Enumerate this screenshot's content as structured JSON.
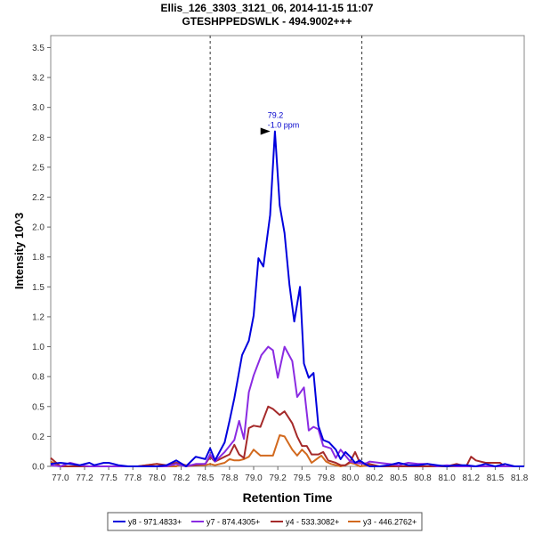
{
  "chart_data": {
    "type": "line",
    "title": "Ellis_126_3303_3121_06, 2014-11-15 11:07",
    "subtitle": "GTESHPPEDSWLK - 494.9002+++",
    "xlabel": "Retention Time",
    "ylabel": "Intensity 10^3",
    "xlim": [
      76.9,
      81.8
    ],
    "ylim": [
      0,
      3.6
    ],
    "xticks": [
      "77.0",
      "77.2",
      "77.5",
      "77.8",
      "78.0",
      "78.2",
      "78.5",
      "78.8",
      "79.0",
      "79.2",
      "79.5",
      "79.8",
      "80.0",
      "80.2",
      "80.5",
      "80.8",
      "81.0",
      "81.2",
      "81.5",
      "81.8"
    ],
    "yticks": [
      "0.0",
      "0.2",
      "0.5",
      "0.8",
      "1.0",
      "1.2",
      "1.5",
      "1.8",
      "2.0",
      "2.2",
      "2.5",
      "2.8",
      "3.0",
      "3.2",
      "3.5"
    ],
    "boundaries": [
      78.55,
      80.12
    ],
    "annotation": {
      "x": 79.2,
      "y": 2.8,
      "line1": "79.2",
      "line2": "-1.0 ppm"
    },
    "legend_position": "bottom",
    "series": [
      {
        "name": "y8 - 971.4833+",
        "color": "#0000dd",
        "points": [
          [
            76.9,
            0.02
          ],
          [
            77.0,
            0.03
          ],
          [
            77.1,
            0.02
          ],
          [
            77.2,
            0.01
          ],
          [
            77.3,
            0.03
          ],
          [
            77.35,
            0.01
          ],
          [
            77.45,
            0.03
          ],
          [
            77.5,
            0.03
          ],
          [
            77.6,
            0.01
          ],
          [
            77.7,
            0.0
          ],
          [
            77.8,
            0.0
          ],
          [
            78.0,
            0.0
          ],
          [
            78.1,
            0.01
          ],
          [
            78.2,
            0.05
          ],
          [
            78.3,
            0.0
          ],
          [
            78.4,
            0.08
          ],
          [
            78.5,
            0.06
          ],
          [
            78.55,
            0.15
          ],
          [
            78.6,
            0.05
          ],
          [
            78.7,
            0.2
          ],
          [
            78.75,
            0.38
          ],
          [
            78.8,
            0.57
          ],
          [
            78.88,
            0.93
          ],
          [
            78.95,
            1.05
          ],
          [
            79.0,
            1.26
          ],
          [
            79.05,
            1.74
          ],
          [
            79.1,
            1.67
          ],
          [
            79.17,
            2.1
          ],
          [
            79.22,
            2.8
          ],
          [
            79.27,
            2.18
          ],
          [
            79.32,
            1.95
          ],
          [
            79.37,
            1.52
          ],
          [
            79.42,
            1.21
          ],
          [
            79.48,
            1.5
          ],
          [
            79.52,
            0.86
          ],
          [
            79.57,
            0.74
          ],
          [
            79.62,
            0.78
          ],
          [
            79.67,
            0.34
          ],
          [
            79.72,
            0.22
          ],
          [
            79.78,
            0.2
          ],
          [
            79.85,
            0.14
          ],
          [
            79.9,
            0.06
          ],
          [
            79.95,
            0.12
          ],
          [
            80.0,
            0.08
          ],
          [
            80.05,
            0.03
          ],
          [
            80.1,
            0.05
          ],
          [
            80.15,
            0.02
          ],
          [
            80.2,
            0.0
          ],
          [
            80.3,
            0.0
          ],
          [
            80.4,
            0.01
          ],
          [
            80.5,
            0.03
          ],
          [
            80.6,
            0.01
          ],
          [
            80.7,
            0.01
          ],
          [
            80.8,
            0.02
          ],
          [
            80.9,
            0.01
          ],
          [
            81.0,
            0.0
          ],
          [
            81.1,
            0.01
          ],
          [
            81.2,
            0.01
          ],
          [
            81.3,
            0.0
          ],
          [
            81.4,
            0.02
          ],
          [
            81.5,
            0.0
          ],
          [
            81.6,
            0.02
          ],
          [
            81.7,
            0.0
          ],
          [
            81.8,
            0.0
          ]
        ]
      },
      {
        "name": "y7 - 874.4305+",
        "color": "#8a2be2",
        "points": [
          [
            76.9,
            0.01
          ],
          [
            77.0,
            0.0
          ],
          [
            77.1,
            0.03
          ],
          [
            77.2,
            0.01
          ],
          [
            77.3,
            0.0
          ],
          [
            77.4,
            0.0
          ],
          [
            77.5,
            0.0
          ],
          [
            77.7,
            0.0
          ],
          [
            77.9,
            0.0
          ],
          [
            78.1,
            0.0
          ],
          [
            78.2,
            0.02
          ],
          [
            78.3,
            0.0
          ],
          [
            78.4,
            0.02
          ],
          [
            78.5,
            0.02
          ],
          [
            78.55,
            0.1
          ],
          [
            78.6,
            0.04
          ],
          [
            78.7,
            0.12
          ],
          [
            78.8,
            0.22
          ],
          [
            78.85,
            0.38
          ],
          [
            78.9,
            0.23
          ],
          [
            78.95,
            0.62
          ],
          [
            79.0,
            0.76
          ],
          [
            79.08,
            0.93
          ],
          [
            79.15,
            1.0
          ],
          [
            79.2,
            0.97
          ],
          [
            79.25,
            0.74
          ],
          [
            79.32,
            1.0
          ],
          [
            79.4,
            0.88
          ],
          [
            79.45,
            0.58
          ],
          [
            79.52,
            0.66
          ],
          [
            79.57,
            0.3
          ],
          [
            79.62,
            0.33
          ],
          [
            79.67,
            0.31
          ],
          [
            79.72,
            0.17
          ],
          [
            79.8,
            0.15
          ],
          [
            79.85,
            0.07
          ],
          [
            79.9,
            0.14
          ],
          [
            79.95,
            0.09
          ],
          [
            80.0,
            0.04
          ],
          [
            80.05,
            0.03
          ],
          [
            80.15,
            0.02
          ],
          [
            80.2,
            0.04
          ],
          [
            80.3,
            0.03
          ],
          [
            80.4,
            0.02
          ],
          [
            80.5,
            0.01
          ],
          [
            80.6,
            0.03
          ],
          [
            80.7,
            0.02
          ],
          [
            80.8,
            0.02
          ],
          [
            80.9,
            0.0
          ],
          [
            81.0,
            0.01
          ],
          [
            81.1,
            0.0
          ],
          [
            81.2,
            0.0
          ],
          [
            81.3,
            0.0
          ],
          [
            81.5,
            0.0
          ],
          [
            81.7,
            0.0
          ],
          [
            81.8,
            0.0
          ]
        ]
      },
      {
        "name": "y4 - 533.3082+",
        "color": "#a52a2a",
        "points": [
          [
            76.9,
            0.07
          ],
          [
            77.0,
            0.0
          ],
          [
            77.1,
            0.0
          ],
          [
            77.2,
            0.0
          ],
          [
            77.4,
            0.0
          ],
          [
            77.6,
            0.0
          ],
          [
            77.8,
            0.0
          ],
          [
            78.0,
            0.02
          ],
          [
            78.1,
            0.01
          ],
          [
            78.2,
            0.03
          ],
          [
            78.3,
            0.0
          ],
          [
            78.4,
            0.01
          ],
          [
            78.5,
            0.02
          ],
          [
            78.55,
            0.08
          ],
          [
            78.6,
            0.04
          ],
          [
            78.7,
            0.08
          ],
          [
            78.75,
            0.1
          ],
          [
            78.8,
            0.18
          ],
          [
            78.85,
            0.1
          ],
          [
            78.9,
            0.07
          ],
          [
            78.95,
            0.32
          ],
          [
            79.0,
            0.34
          ],
          [
            79.07,
            0.33
          ],
          [
            79.15,
            0.5
          ],
          [
            79.2,
            0.48
          ],
          [
            79.27,
            0.43
          ],
          [
            79.32,
            0.46
          ],
          [
            79.4,
            0.36
          ],
          [
            79.45,
            0.25
          ],
          [
            79.5,
            0.17
          ],
          [
            79.55,
            0.17
          ],
          [
            79.6,
            0.1
          ],
          [
            79.67,
            0.1
          ],
          [
            79.72,
            0.12
          ],
          [
            79.77,
            0.05
          ],
          [
            79.85,
            0.03
          ],
          [
            79.9,
            0.01
          ],
          [
            79.95,
            0.01
          ],
          [
            80.0,
            0.04
          ],
          [
            80.05,
            0.12
          ],
          [
            80.1,
            0.03
          ],
          [
            80.2,
            0.02
          ],
          [
            80.3,
            0.0
          ],
          [
            80.4,
            0.0
          ],
          [
            80.5,
            0.0
          ],
          [
            80.6,
            0.0
          ],
          [
            80.7,
            0.0
          ],
          [
            80.8,
            0.0
          ],
          [
            80.9,
            0.0
          ],
          [
            81.0,
            0.0
          ],
          [
            81.1,
            0.02
          ],
          [
            81.2,
            0.0
          ],
          [
            81.25,
            0.08
          ],
          [
            81.3,
            0.05
          ],
          [
            81.4,
            0.03
          ],
          [
            81.5,
            0.03
          ],
          [
            81.55,
            0.03
          ],
          [
            81.6,
            0.0
          ],
          [
            81.8,
            0.0
          ]
        ]
      },
      {
        "name": "y3 - 446.2762+",
        "color": "#d2691e",
        "points": [
          [
            76.9,
            0.04
          ],
          [
            77.0,
            0.0
          ],
          [
            77.2,
            0.0
          ],
          [
            77.4,
            0.0
          ],
          [
            77.6,
            0.0
          ],
          [
            77.8,
            0.0
          ],
          [
            78.0,
            0.02
          ],
          [
            78.1,
            0.0
          ],
          [
            78.2,
            0.0
          ],
          [
            78.25,
            0.02
          ],
          [
            78.3,
            0.01
          ],
          [
            78.4,
            0.01
          ],
          [
            78.5,
            0.01
          ],
          [
            78.55,
            0.02
          ],
          [
            78.6,
            0.01
          ],
          [
            78.7,
            0.03
          ],
          [
            78.75,
            0.06
          ],
          [
            78.8,
            0.05
          ],
          [
            78.85,
            0.05
          ],
          [
            78.9,
            0.06
          ],
          [
            78.95,
            0.08
          ],
          [
            79.0,
            0.14
          ],
          [
            79.07,
            0.09
          ],
          [
            79.15,
            0.09
          ],
          [
            79.2,
            0.09
          ],
          [
            79.27,
            0.26
          ],
          [
            79.32,
            0.25
          ],
          [
            79.4,
            0.14
          ],
          [
            79.45,
            0.09
          ],
          [
            79.5,
            0.14
          ],
          [
            79.55,
            0.1
          ],
          [
            79.6,
            0.03
          ],
          [
            79.65,
            0.06
          ],
          [
            79.7,
            0.09
          ],
          [
            79.75,
            0.04
          ],
          [
            79.8,
            0.02
          ],
          [
            79.9,
            0.0
          ],
          [
            79.95,
            0.01
          ],
          [
            80.0,
            0.03
          ],
          [
            80.05,
            0.02
          ],
          [
            80.1,
            0.0
          ],
          [
            80.2,
            0.01
          ],
          [
            80.3,
            0.0
          ],
          [
            80.5,
            0.0
          ],
          [
            80.7,
            0.0
          ],
          [
            80.9,
            0.0
          ],
          [
            81.1,
            0.0
          ],
          [
            81.3,
            0.0
          ],
          [
            81.5,
            0.0
          ],
          [
            81.8,
            0.0
          ]
        ]
      }
    ]
  }
}
